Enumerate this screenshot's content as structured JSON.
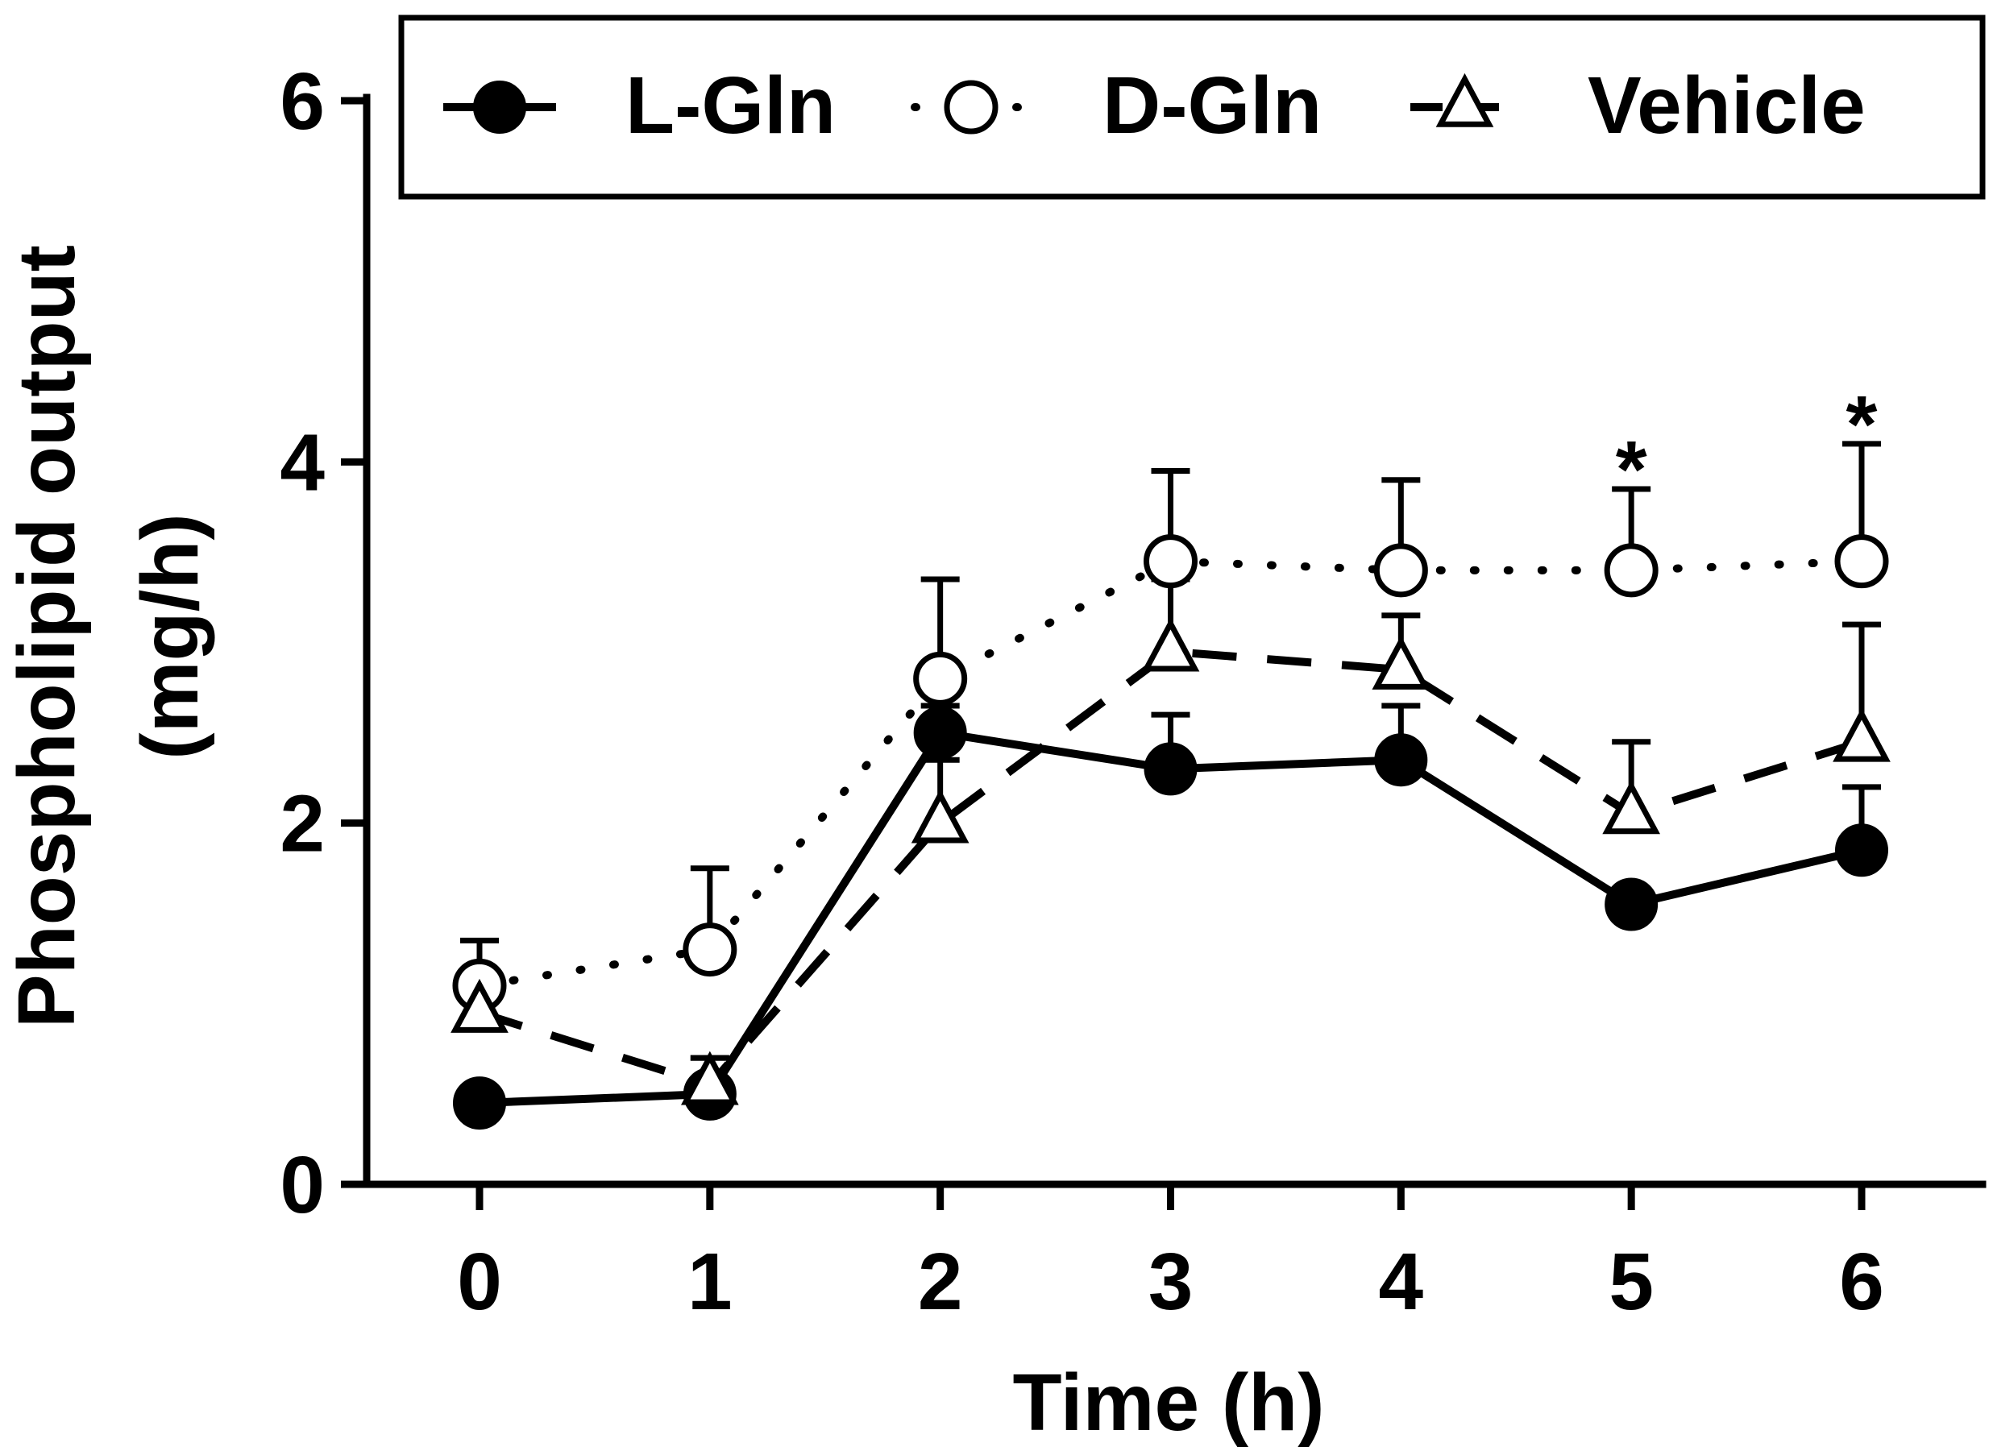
{
  "chart_data": {
    "type": "line",
    "xlabel": "Time (h)",
    "ylabel_line1": "Phospholipid output",
    "ylabel_line2": "(mg/h)",
    "x": [
      0,
      1,
      2,
      3,
      4,
      5,
      6
    ],
    "xticks": [
      "0",
      "1",
      "2",
      "3",
      "4",
      "5",
      "6"
    ],
    "yticks": [
      "0",
      "2",
      "4",
      "6"
    ],
    "xlim": [
      -0.5,
      6.5
    ],
    "ylim": [
      0,
      6
    ],
    "legend_position": "top",
    "series": [
      {
        "name": "L-Gln",
        "marker": "filled-circle",
        "line": "solid",
        "values": [
          0.45,
          0.5,
          2.5,
          2.3,
          2.35,
          1.55,
          1.85
        ],
        "err_plus": [
          0,
          0.2,
          0.15,
          0.3,
          0.3,
          0.05,
          0.35
        ]
      },
      {
        "name": "D-Gln",
        "marker": "open-circle",
        "line": "dotted",
        "values": [
          1.1,
          1.3,
          2.8,
          3.45,
          3.4,
          3.4,
          3.45
        ],
        "err_plus": [
          0.25,
          0.45,
          0.55,
          0.5,
          0.5,
          0.45,
          0.65
        ]
      },
      {
        "name": "Vehicle",
        "marker": "open-triangle",
        "line": "dashed",
        "values": [
          0.95,
          0.55,
          2.0,
          2.95,
          2.85,
          2.05,
          2.45
        ],
        "err_plus": [
          0,
          0.15,
          0.35,
          0.4,
          0.3,
          0.4,
          0.65
        ]
      }
    ],
    "annotations": [
      {
        "x": 5,
        "y": 4.05,
        "text": "*"
      },
      {
        "x": 6,
        "y": 4.3,
        "text": "*"
      }
    ]
  }
}
